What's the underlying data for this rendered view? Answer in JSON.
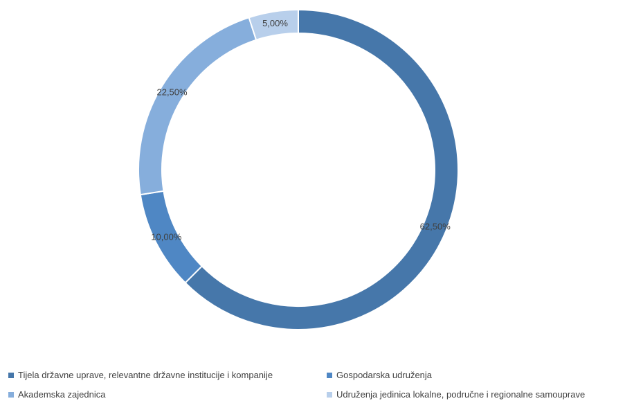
{
  "chart_data": {
    "type": "pie",
    "donut": true,
    "categories": [
      "Tijela državne uprave, relevantne državne institucije i kompanije",
      "Gospodarska udruženja",
      "Akademska zajednica",
      "Udruženja jedinica lokalne, područne i regionalne samouprave"
    ],
    "values": [
      62.5,
      10.0,
      22.5,
      5.0
    ],
    "data_labels": [
      "62,50%",
      "10,00%",
      "22,50%",
      "5,00%"
    ],
    "colors": [
      "#4677aa",
      "#4f87c4",
      "#86aedc",
      "#b8cfeb"
    ],
    "title": "",
    "legend_position": "bottom",
    "start_angle_deg": 0,
    "direction": "clockwise"
  },
  "legend": {
    "items": [
      {
        "label": "Tijela državne uprave, relevantne državne institucije i kompanije",
        "color": "#4677aa"
      },
      {
        "label": "Gospodarska udruženja",
        "color": "#4f87c4"
      },
      {
        "label": "Akademska zajednica",
        "color": "#86aedc"
      },
      {
        "label": "Udruženja jedinica lokalne, područne i regionalne samouprave",
        "color": "#b8cfeb"
      }
    ]
  }
}
